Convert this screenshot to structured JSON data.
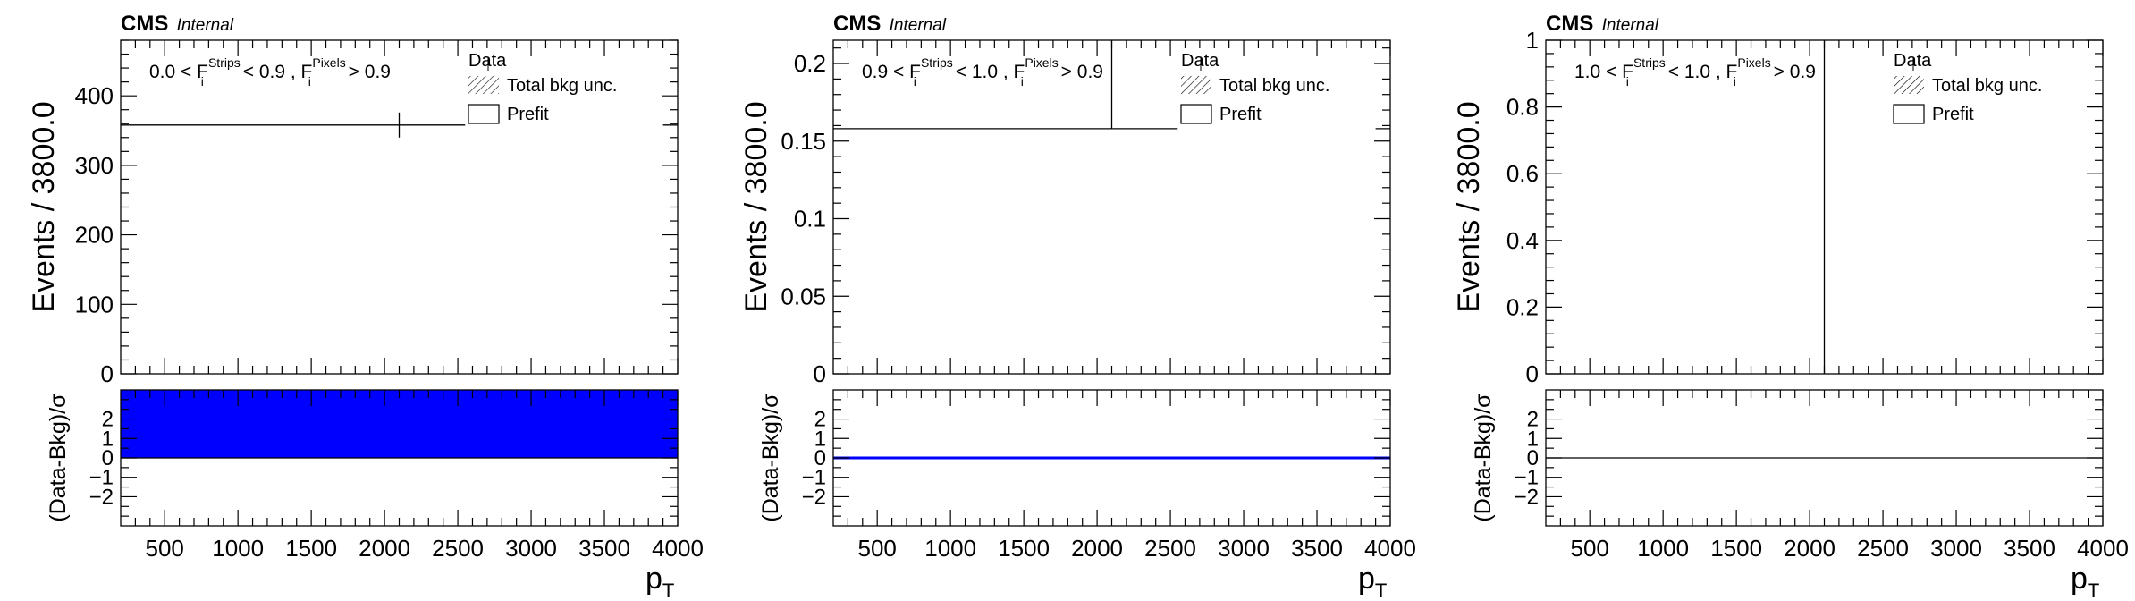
{
  "chart_data": [
    {
      "type": "line",
      "experiment": "CMS",
      "status": "Internal",
      "selection": {
        "lo": "0.0",
        "hi": "0.9",
        "pix_cut": "0.9",
        "F": "F",
        "sub": "i",
        "strips": "Strips",
        "pixels": "Pixels",
        "lt": "<",
        "gt": ">",
        "comma": ","
      },
      "legend": {
        "data": "Data",
        "bkg_unc": "Total bkg unc.",
        "prefit": "Prefit"
      },
      "top": {
        "ylabel": "Events / 3800.0",
        "ylim": [
          0,
          480
        ],
        "yticks": [
          0,
          100,
          200,
          300,
          400
        ],
        "ytick_labels": [
          "0",
          "100",
          "200",
          "300",
          "400"
        ],
        "hline": {
          "y": 358,
          "x_segments": [
            [
              200,
              2550
            ],
            [
              3900,
              4000
            ]
          ]
        },
        "data_point": {
          "x": 2100,
          "y": 358,
          "err_lo": 340,
          "err_hi": 376
        }
      },
      "ratio": {
        "ylabel": "(Data-Bkg)/σ",
        "ylim": [
          -3.5,
          3.5
        ],
        "yticks": [
          -2,
          -1,
          0,
          1,
          2
        ],
        "ytick_labels": [
          "−2",
          "−1",
          "0",
          "1",
          "2"
        ],
        "fill": {
          "y0": 0,
          "y1": 3.5,
          "color": "#0000ff"
        },
        "line_y": 0,
        "line_color": "#000000"
      },
      "xlabel": "p",
      "xlabel_sub": "T",
      "xlim": [
        200,
        4000
      ],
      "xticks": [
        500,
        1000,
        1500,
        2000,
        2500,
        3000,
        3500,
        4000
      ],
      "xtick_labels": [
        "500",
        "1000",
        "1500",
        "2000",
        "2500",
        "3000",
        "3500",
        "4000"
      ]
    },
    {
      "type": "line",
      "experiment": "CMS",
      "status": "Internal",
      "selection": {
        "lo": "0.9",
        "hi": "1.0",
        "pix_cut": "0.9",
        "F": "F",
        "sub": "i",
        "strips": "Strips",
        "pixels": "Pixels",
        "lt": "<",
        "gt": ">",
        "comma": ","
      },
      "legend": {
        "data": "Data",
        "bkg_unc": "Total bkg unc.",
        "prefit": "Prefit"
      },
      "top": {
        "ylabel": "Events / 3800.0",
        "ylim": [
          0,
          0.215
        ],
        "yticks": [
          0,
          0.05,
          0.1,
          0.15,
          0.2
        ],
        "ytick_labels": [
          "0",
          "0.05",
          "0.1",
          "0.15",
          "0.2"
        ],
        "hline": {
          "y": 0.158,
          "x_segments": [
            [
              200,
              2550
            ],
            [
              3900,
              4000
            ]
          ]
        },
        "vline": {
          "x": 2100,
          "y0": 0.158,
          "y1": 0.215
        }
      },
      "ratio": {
        "ylabel": "(Data-Bkg)/σ",
        "ylim": [
          -3.5,
          3.5
        ],
        "yticks": [
          -2,
          -1,
          0,
          1,
          2
        ],
        "ytick_labels": [
          "−2",
          "−1",
          "0",
          "1",
          "2"
        ],
        "line_y": 0,
        "line_color": "#0000ff",
        "line_width": 3
      },
      "xlabel": "p",
      "xlabel_sub": "T",
      "xlim": [
        200,
        4000
      ],
      "xticks": [
        500,
        1000,
        1500,
        2000,
        2500,
        3000,
        3500,
        4000
      ],
      "xtick_labels": [
        "500",
        "1000",
        "1500",
        "2000",
        "2500",
        "3000",
        "3500",
        "4000"
      ]
    },
    {
      "type": "line",
      "experiment": "CMS",
      "status": "Internal",
      "selection": {
        "lo": "1.0",
        "hi": "1.0",
        "pix_cut": "0.9",
        "F": "F",
        "sub": "i",
        "strips": "Strips",
        "pixels": "Pixels",
        "lt": "<",
        "gt": ">",
        "comma": ","
      },
      "legend": {
        "data": "Data",
        "bkg_unc": "Total bkg unc.",
        "prefit": "Prefit"
      },
      "top": {
        "ylabel": "Events / 3800.0",
        "ylim": [
          0,
          1
        ],
        "yticks": [
          0,
          0.2,
          0.4,
          0.6,
          0.8,
          1
        ],
        "ytick_labels": [
          "0",
          "0.2",
          "0.4",
          "0.6",
          "0.8",
          "1"
        ],
        "vline": {
          "x": 2100,
          "y0": 0,
          "y1": 1
        }
      },
      "ratio": {
        "ylabel": "(Data-Bkg)/σ",
        "ylim": [
          -3.5,
          3.5
        ],
        "yticks": [
          -2,
          -1,
          0,
          1,
          2
        ],
        "ytick_labels": [
          "−2",
          "−1",
          "0",
          "1",
          "2"
        ],
        "line_y": 0,
        "line_color": "#000000"
      },
      "xlabel": "p",
      "xlabel_sub": "T",
      "xlim": [
        200,
        4000
      ],
      "xticks": [
        500,
        1000,
        1500,
        2000,
        2500,
        3000,
        3500,
        4000
      ],
      "xtick_labels": [
        "500",
        "1000",
        "1500",
        "2000",
        "2500",
        "3000",
        "3500",
        "4000"
      ]
    }
  ]
}
